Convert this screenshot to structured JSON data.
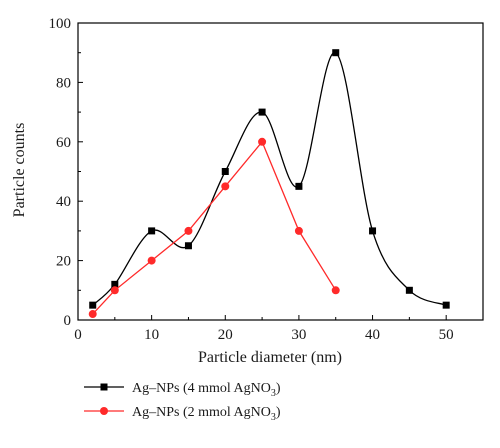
{
  "chart_data": {
    "type": "line",
    "xlabel": "Particle diameter (nm)",
    "ylabel": "Particle counts",
    "xlim": [
      0,
      55
    ],
    "ylim": [
      0,
      100
    ],
    "xticks": [
      "0",
      "10",
      "20",
      "30",
      "40",
      "50"
    ],
    "yticks": [
      "0",
      "20",
      "40",
      "60",
      "80",
      "100"
    ],
    "grid": false,
    "legend_position": "bottom-left",
    "series": [
      {
        "name": "Ag–NPs (4 mmol AgNO3)",
        "label_main": "Ag–NPs (4 mmol AgNO",
        "label_sub": "3",
        "label_end": ")",
        "color": "#000000",
        "marker": "square",
        "smooth": true,
        "x": [
          2,
          5,
          10,
          15,
          20,
          25,
          30,
          35,
          40,
          45,
          50
        ],
        "y": [
          5,
          12,
          30,
          25,
          50,
          70,
          45,
          90,
          30,
          10,
          5
        ]
      },
      {
        "name": "Ag–NPs (2 mmol AgNO3)",
        "label_main": "Ag–NPs (2 mmol AgNO",
        "label_sub": "3",
        "label_end": ")",
        "color": "#ff2a2a",
        "marker": "circle",
        "smooth": false,
        "x": [
          2,
          5,
          10,
          15,
          20,
          25,
          30,
          35
        ],
        "y": [
          2,
          10,
          20,
          30,
          45,
          60,
          30,
          10
        ]
      }
    ]
  }
}
